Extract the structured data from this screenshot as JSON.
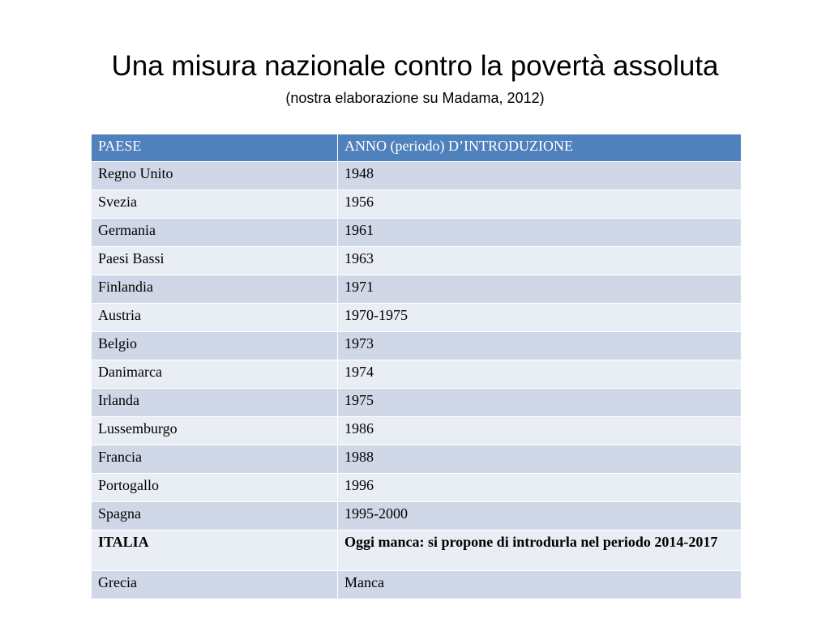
{
  "slide": {
    "title": "Una misura nazionale contro la povertà assoluta",
    "subtitle": "(nostra elaborazione su Madama, 2012)"
  },
  "table": {
    "headers": [
      "PAESE",
      "ANNO (periodo) D’INTRODUZIONE"
    ],
    "rows": [
      {
        "country": "Regno Unito",
        "year": "1948",
        "bold": false
      },
      {
        "country": "Svezia",
        "year": "1956",
        "bold": false
      },
      {
        "country": "Germania",
        "year": "1961",
        "bold": false
      },
      {
        "country": "Paesi Bassi",
        "year": "1963",
        "bold": false
      },
      {
        "country": "Finlandia",
        "year": "1971",
        "bold": false
      },
      {
        "country": "Austria",
        "year": "1970-1975",
        "bold": false
      },
      {
        "country": "Belgio",
        "year": "1973",
        "bold": false
      },
      {
        "country": "Danimarca",
        "year": "1974",
        "bold": false
      },
      {
        "country": "Irlanda",
        "year": "1975",
        "bold": false
      },
      {
        "country": "Lussemburgo",
        "year": "1986",
        "bold": false
      },
      {
        "country": "Francia",
        "year": "1988",
        "bold": false
      },
      {
        "country": "Portogallo",
        "year": "1996",
        "bold": false
      },
      {
        "country": "Spagna",
        "year": "1995-2000",
        "bold": false
      },
      {
        "country": "ITALIA",
        "year": "Oggi manca: si propone di introdurla nel periodo 2014-2017",
        "bold": true
      },
      {
        "country": "Grecia",
        "year": "Manca",
        "bold": false
      }
    ]
  },
  "colors": {
    "header_bg": "#4f81bd",
    "row_odd_bg": "#d0d8e8",
    "row_even_bg": "#e9edf4"
  }
}
